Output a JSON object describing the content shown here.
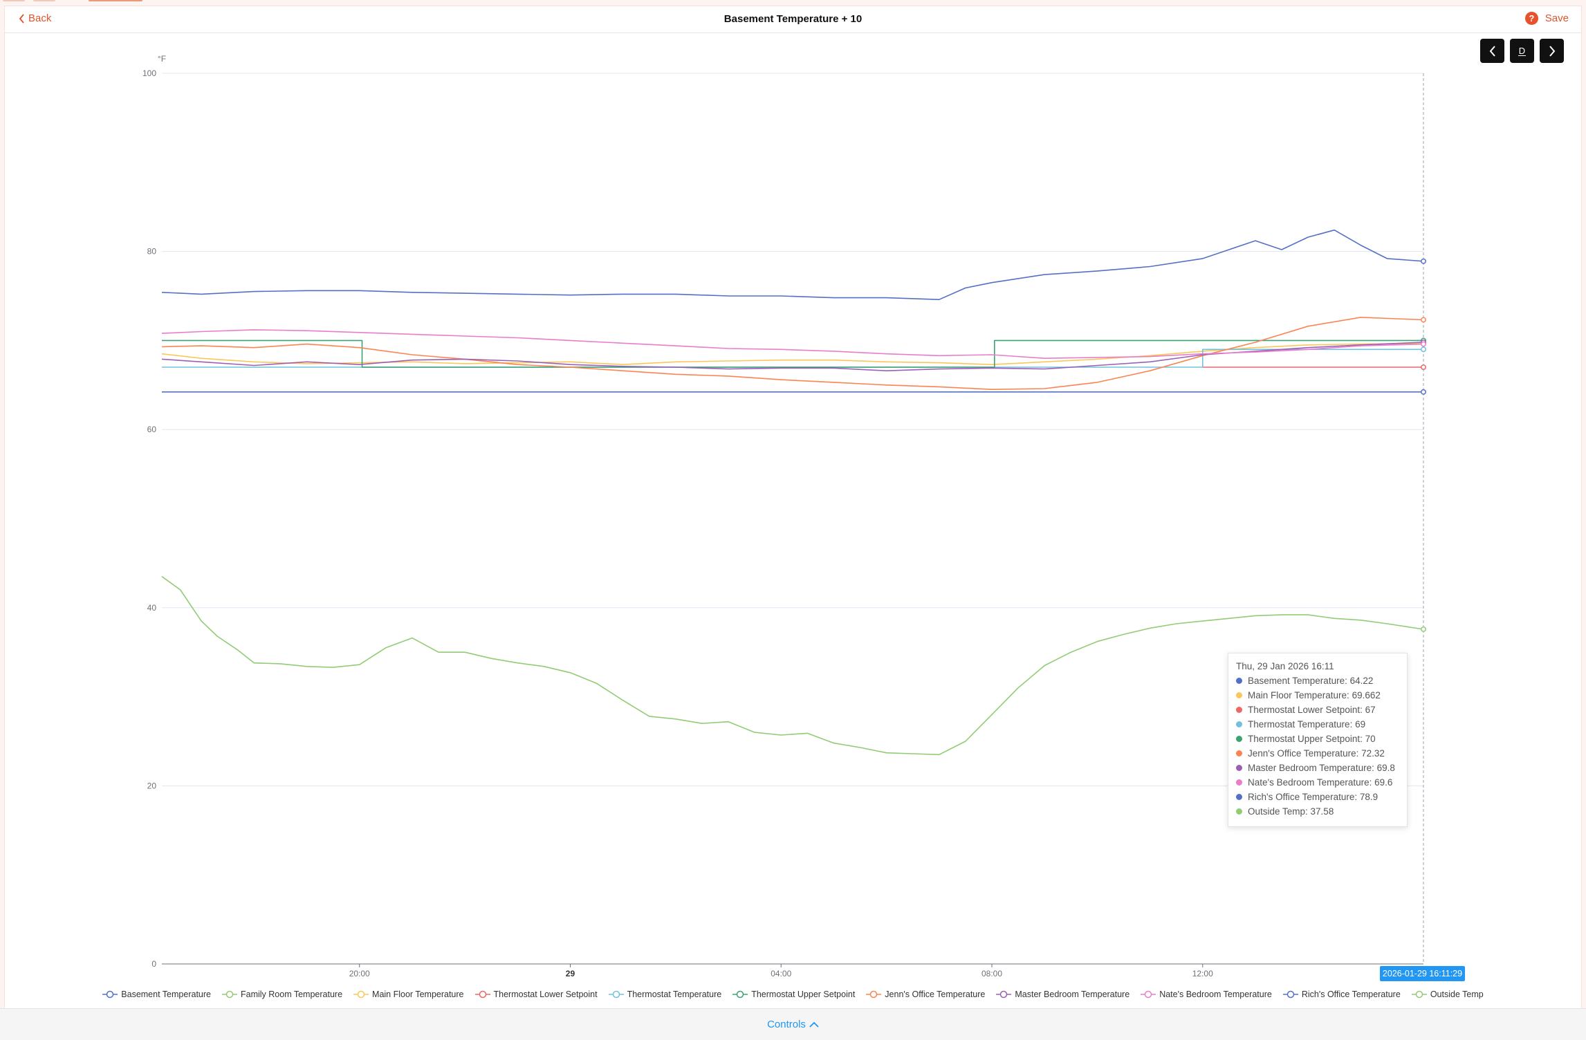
{
  "header": {
    "back_label": "Back",
    "title": "Basement Temperature + 10",
    "save_label": "Save",
    "help_glyph": "?"
  },
  "nav": {
    "prev_icon": "chevron-left-icon",
    "period_label": "D",
    "next_icon": "chevron-right-icon"
  },
  "footer": {
    "controls_label": "Controls"
  },
  "tooltip": {
    "time": "Thu, 29 Jan 2026 16:11",
    "rows": [
      {
        "text": "Basement Temperature: 64.22",
        "color": "#5470c6"
      },
      {
        "text": "Main Floor Temperature: 69.662",
        "color": "#fac858"
      },
      {
        "text": "Thermostat Lower Setpoint: 67",
        "color": "#ee6666"
      },
      {
        "text": "Thermostat Temperature: 69",
        "color": "#73c0de"
      },
      {
        "text": "Thermostat Upper Setpoint: 70",
        "color": "#3ba272"
      },
      {
        "text": "Jenn's Office Temperature: 72.32",
        "color": "#fc8452"
      },
      {
        "text": "Master Bedroom Temperature: 69.8",
        "color": "#9a60b4"
      },
      {
        "text": "Nate's Bedroom Temperature: 69.6",
        "color": "#ea7ccc"
      },
      {
        "text": "Rich's Office Temperature: 78.9",
        "color": "#5470c6"
      },
      {
        "text": "Outside Temp: 37.58",
        "color": "#91cc75"
      }
    ]
  },
  "cursor_label": "2026-01-29 16:11:29",
  "chart_data": {
    "type": "line",
    "title": "Basement Temperature + 10",
    "ylabel": "°F",
    "xlabel": "",
    "ylim": [
      0,
      100
    ],
    "y_ticks": [
      "0",
      "20",
      "40",
      "60",
      "80",
      "100"
    ],
    "x_ticks": [
      {
        "label": "20:00",
        "x": 20,
        "bold": false
      },
      {
        "label": "29",
        "x": 24,
        "bold": true
      },
      {
        "label": "04:00",
        "x": 28,
        "bold": false
      },
      {
        "label": "08:00",
        "x": 32,
        "bold": false
      },
      {
        "label": "12:00",
        "x": 36,
        "bold": false
      }
    ],
    "x_unit": "hours since 2026-01-28 00:00",
    "xlim": [
      16.25,
      40.19
    ],
    "grid": true,
    "legend_position": "bottom",
    "series": [
      {
        "name": "Basement Temperature",
        "color": "#5470c6",
        "legend": true,
        "x": [
          16.25,
          40.19
        ],
        "y": [
          64.22,
          64.22
        ]
      },
      {
        "name": "Family Room Temperature",
        "color": "#91cc75",
        "legend": true,
        "x": [],
        "y": []
      },
      {
        "name": "Main Floor Temperature",
        "color": "#fac858",
        "legend": true,
        "x": [
          16.25,
          17,
          18,
          19,
          20,
          21,
          22,
          23,
          24,
          25,
          26,
          27,
          28,
          29,
          30,
          31,
          32,
          33,
          34,
          35,
          36,
          37,
          38,
          39,
          40.19
        ],
        "y": [
          68.5,
          68.0,
          67.6,
          67.4,
          67.5,
          67.6,
          67.4,
          67.5,
          67.6,
          67.3,
          67.6,
          67.7,
          67.8,
          67.8,
          67.6,
          67.5,
          67.3,
          67.6,
          67.9,
          68.3,
          68.8,
          69.2,
          69.5,
          69.6,
          69.66
        ]
      },
      {
        "name": "Thermostat Lower Setpoint",
        "color": "#ee6666",
        "legend": true,
        "x": [
          36,
          40.19
        ],
        "y": [
          67,
          67
        ]
      },
      {
        "name": "Thermostat Temperature",
        "color": "#73c0de",
        "legend": true,
        "x": [
          16.25,
          36,
          36,
          38.7,
          38.7,
          40.19
        ],
        "y": [
          67,
          67,
          69,
          69,
          69,
          69
        ]
      },
      {
        "name": "Thermostat Upper Setpoint",
        "color": "#3ba272",
        "legend": true,
        "x": [
          16.25,
          20.05,
          20.05,
          32.05,
          32.05,
          40.19
        ],
        "y": [
          70,
          70,
          67,
          67,
          70,
          70
        ]
      },
      {
        "name": "Jenn's Office Temperature",
        "color": "#fc8452",
        "legend": true,
        "x": [
          16.25,
          17,
          18,
          19,
          20,
          21,
          22,
          23,
          24,
          25,
          26,
          27,
          28,
          29,
          30,
          31,
          32,
          33,
          34,
          35,
          36,
          37,
          38,
          39,
          40.19
        ],
        "y": [
          69.3,
          69.4,
          69.2,
          69.6,
          69.2,
          68.4,
          67.9,
          67.3,
          67.0,
          66.6,
          66.2,
          66.0,
          65.6,
          65.3,
          65.0,
          64.8,
          64.5,
          64.6,
          65.3,
          66.6,
          68.3,
          69.8,
          71.6,
          72.6,
          72.32
        ]
      },
      {
        "name": "Master Bedroom Temperature",
        "color": "#9a60b4",
        "legend": true,
        "x": [
          16.25,
          17,
          18,
          19,
          20,
          21,
          22,
          23,
          24,
          25,
          26,
          27,
          28,
          29,
          30,
          31,
          32,
          33,
          34,
          35,
          36,
          37,
          38,
          39,
          40.19
        ],
        "y": [
          67.9,
          67.6,
          67.2,
          67.6,
          67.3,
          67.8,
          67.9,
          67.7,
          67.3,
          67.1,
          67.0,
          66.8,
          66.9,
          66.9,
          66.6,
          66.8,
          66.9,
          66.8,
          67.2,
          67.6,
          68.4,
          68.8,
          69.2,
          69.5,
          69.8
        ]
      },
      {
        "name": "Nate's Bedroom Temperature",
        "color": "#ea7ccc",
        "legend": true,
        "x": [
          16.25,
          17,
          18,
          19,
          20,
          21,
          22,
          23,
          24,
          25,
          26,
          27,
          28,
          29,
          30,
          31,
          32,
          33,
          34,
          35,
          36,
          37,
          38,
          39,
          40.19
        ],
        "y": [
          70.8,
          71.0,
          71.2,
          71.1,
          70.9,
          70.7,
          70.5,
          70.3,
          70.0,
          69.7,
          69.4,
          69.1,
          69.0,
          68.8,
          68.5,
          68.3,
          68.4,
          68.0,
          68.1,
          68.2,
          68.5,
          68.7,
          69.0,
          69.4,
          69.6
        ]
      },
      {
        "name": "Rich's Office Temperature",
        "color": "#5470c6",
        "legend": true,
        "x": [
          16.25,
          17,
          18,
          19,
          20,
          21,
          22,
          23,
          24,
          25,
          26,
          27,
          28,
          29,
          30,
          31,
          31.5,
          32,
          33,
          34,
          35,
          36,
          37,
          37.5,
          38,
          38.5,
          39,
          39.5,
          40.19
        ],
        "y": [
          75.4,
          75.2,
          75.5,
          75.6,
          75.6,
          75.4,
          75.3,
          75.2,
          75.1,
          75.2,
          75.2,
          75.0,
          75.0,
          74.8,
          74.8,
          74.6,
          75.9,
          76.5,
          77.4,
          77.8,
          78.3,
          79.2,
          81.2,
          80.2,
          81.6,
          82.4,
          80.7,
          79.2,
          78.9
        ]
      },
      {
        "name": "Outside Temp",
        "color": "#91cc75",
        "legend": true,
        "x": [
          16.25,
          16.6,
          17,
          17.3,
          17.7,
          18,
          18.5,
          19,
          19.5,
          20,
          20.5,
          21,
          21.5,
          22,
          22.5,
          23,
          23.5,
          24,
          24.5,
          25,
          25.5,
          26,
          26.5,
          27,
          27.5,
          28,
          28.5,
          29,
          29.5,
          30,
          30.5,
          31,
          31.5,
          32,
          32.5,
          33,
          33.5,
          34,
          34.5,
          35,
          35.5,
          36,
          36.5,
          37,
          37.5,
          38,
          38.5,
          39,
          39.5,
          40.19
        ],
        "y": [
          43.5,
          42.0,
          38.5,
          36.8,
          35.2,
          33.8,
          33.7,
          33.4,
          33.3,
          33.6,
          35.5,
          36.6,
          35.0,
          35.0,
          34.3,
          33.8,
          33.4,
          32.7,
          31.5,
          29.6,
          27.8,
          27.5,
          27.0,
          27.2,
          26.0,
          25.7,
          25.9,
          24.8,
          24.3,
          23.7,
          23.6,
          23.5,
          25.0,
          28.0,
          31.0,
          33.5,
          35.0,
          36.2,
          37.0,
          37.7,
          38.2,
          38.5,
          38.8,
          39.1,
          39.2,
          39.2,
          38.8,
          38.6,
          38.2,
          37.58
        ]
      }
    ]
  }
}
